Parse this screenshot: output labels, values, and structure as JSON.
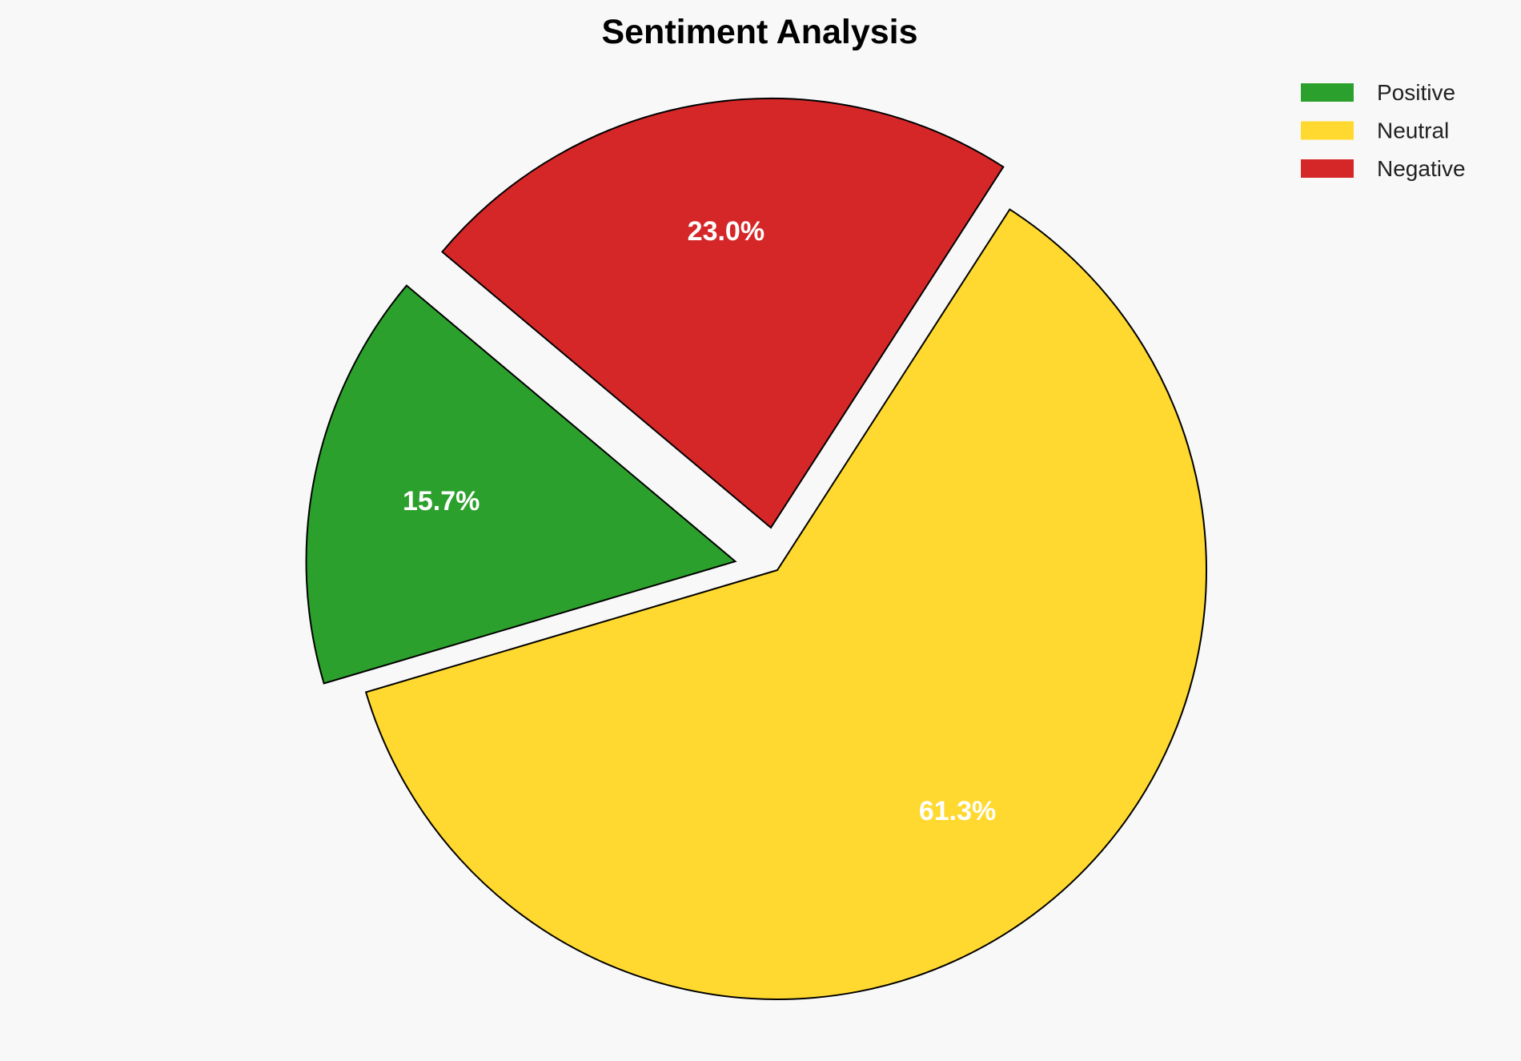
{
  "chart_data": {
    "type": "pie",
    "title": "Sentiment Analysis",
    "categories": [
      "Positive",
      "Neutral",
      "Negative"
    ],
    "values": [
      15.7,
      61.3,
      23.0
    ],
    "labels": [
      "15.7%",
      "61.3%",
      "23.0%"
    ],
    "colors": [
      "#2ca02c",
      "#ffd92f",
      "#d62728"
    ],
    "explode": [
      0.1,
      0,
      0.1
    ],
    "start_angle": 140,
    "counterclockwise": true,
    "legend_placement": "top-right",
    "edge_color": "#000000",
    "label_color": "#ffffff"
  }
}
